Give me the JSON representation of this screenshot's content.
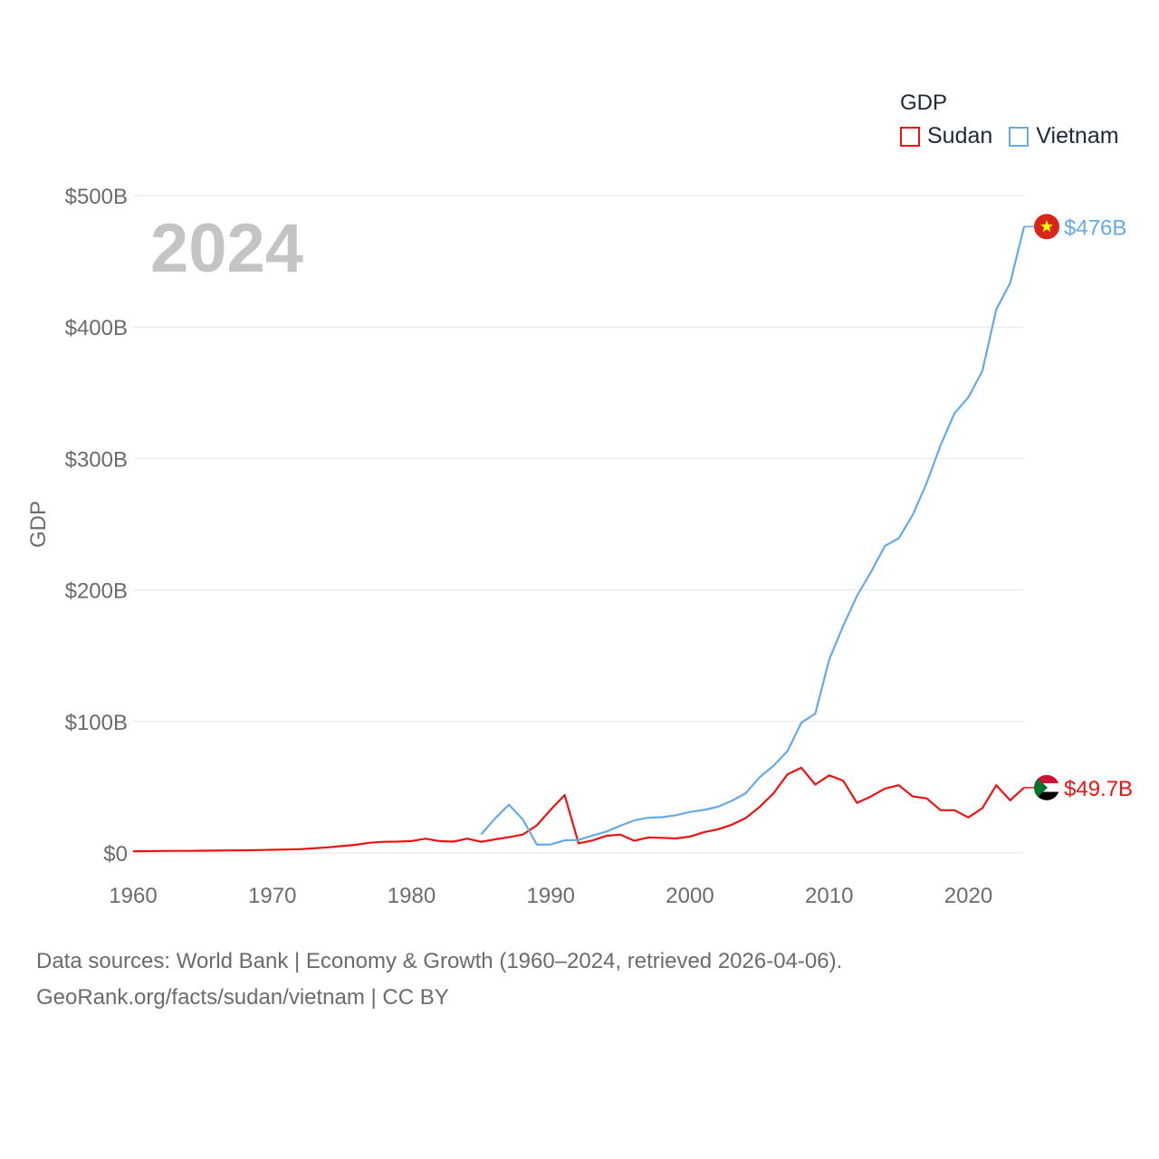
{
  "legend": {
    "title": "GDP",
    "items": [
      {
        "label": "Sudan",
        "color": "#ee1111"
      },
      {
        "label": "Vietnam",
        "color": "#66aae6"
      }
    ]
  },
  "footer": {
    "line1": "Data sources: World Bank | Economy & Growth (1960–2024, retrieved 2026-04-06).",
    "line2": "GeoRank.org/facts/sudan/vietnam | CC BY"
  },
  "chart_data": {
    "type": "line",
    "title": "GDP",
    "year_label": "2024",
    "ylabel": "GDP",
    "xlabel": "",
    "xlim": [
      1960,
      2024
    ],
    "ylim": [
      0,
      500
    ],
    "x_ticks": [
      1960,
      1970,
      1980,
      1990,
      2000,
      2010,
      2020
    ],
    "y_ticks": [
      0,
      100,
      200,
      300,
      400,
      500
    ],
    "y_tick_labels": [
      "$0",
      "$100B",
      "$200B",
      "$300B",
      "$400B",
      "$500B"
    ],
    "grid": true,
    "series": [
      {
        "name": "Sudan",
        "color": "#ee1111",
        "end_label": "$49.7B",
        "flag": "sudan-flag",
        "points": [
          [
            1960,
            1.3
          ],
          [
            1961,
            1.4
          ],
          [
            1962,
            1.5
          ],
          [
            1963,
            1.6
          ],
          [
            1964,
            1.6
          ],
          [
            1965,
            1.7
          ],
          [
            1966,
            1.8
          ],
          [
            1967,
            1.9
          ],
          [
            1968,
            2.0
          ],
          [
            1969,
            2.2
          ],
          [
            1970,
            2.4
          ],
          [
            1971,
            2.6
          ],
          [
            1972,
            2.9
          ],
          [
            1973,
            3.5
          ],
          [
            1974,
            4.3
          ],
          [
            1975,
            5.2
          ],
          [
            1976,
            6.2
          ],
          [
            1977,
            7.8
          ],
          [
            1978,
            8.5
          ],
          [
            1979,
            8.6
          ],
          [
            1980,
            9.0
          ],
          [
            1981,
            10.9
          ],
          [
            1982,
            9.0
          ],
          [
            1983,
            8.6
          ],
          [
            1984,
            10.9
          ],
          [
            1985,
            8.5
          ],
          [
            1986,
            10.3
          ],
          [
            1987,
            12.0
          ],
          [
            1988,
            14.0
          ],
          [
            1989,
            21.0
          ],
          [
            1990,
            33.0
          ],
          [
            1991,
            44.0
          ],
          [
            1992,
            7.3
          ],
          [
            1993,
            9.5
          ],
          [
            1994,
            13.0
          ],
          [
            1995,
            14.0
          ],
          [
            1996,
            9.3
          ],
          [
            1997,
            11.8
          ],
          [
            1998,
            11.5
          ],
          [
            1999,
            11.0
          ],
          [
            2000,
            12.5
          ],
          [
            2001,
            15.8
          ],
          [
            2002,
            18.0
          ],
          [
            2003,
            21.4
          ],
          [
            2004,
            26.5
          ],
          [
            2005,
            35.0
          ],
          [
            2006,
            45.4
          ],
          [
            2007,
            59.7
          ],
          [
            2008,
            64.8
          ],
          [
            2009,
            52.0
          ],
          [
            2010,
            59.0
          ],
          [
            2011,
            55.0
          ],
          [
            2012,
            38.0
          ],
          [
            2013,
            43.0
          ],
          [
            2014,
            49.0
          ],
          [
            2015,
            51.5
          ],
          [
            2016,
            43.0
          ],
          [
            2017,
            41.5
          ],
          [
            2018,
            32.5
          ],
          [
            2019,
            32.5
          ],
          [
            2020,
            27.0
          ],
          [
            2021,
            34.0
          ],
          [
            2022,
            51.5
          ],
          [
            2023,
            40.0
          ],
          [
            2024,
            49.7
          ]
        ]
      },
      {
        "name": "Vietnam",
        "color": "#66aae6",
        "end_label": "$476B",
        "flag": "vietnam-flag",
        "points": [
          [
            1985,
            14.1
          ],
          [
            1986,
            26.3
          ],
          [
            1987,
            36.7
          ],
          [
            1988,
            25.4
          ],
          [
            1989,
            6.3
          ],
          [
            1990,
            6.5
          ],
          [
            1991,
            9.6
          ],
          [
            1992,
            9.9
          ],
          [
            1993,
            13.2
          ],
          [
            1994,
            16.3
          ],
          [
            1995,
            20.7
          ],
          [
            1996,
            24.7
          ],
          [
            1997,
            26.8
          ],
          [
            1998,
            27.2
          ],
          [
            1999,
            28.7
          ],
          [
            2000,
            31.2
          ],
          [
            2001,
            32.7
          ],
          [
            2002,
            35.1
          ],
          [
            2003,
            39.6
          ],
          [
            2004,
            45.4
          ],
          [
            2005,
            57.6
          ],
          [
            2006,
            66.4
          ],
          [
            2007,
            77.4
          ],
          [
            2008,
            99.1
          ],
          [
            2009,
            106.0
          ],
          [
            2010,
            147.2
          ],
          [
            2011,
            172.6
          ],
          [
            2012,
            195.6
          ],
          [
            2013,
            213.7
          ],
          [
            2014,
            233.5
          ],
          [
            2015,
            239.3
          ],
          [
            2016,
            257.1
          ],
          [
            2017,
            281.4
          ],
          [
            2018,
            310.1
          ],
          [
            2019,
            334.4
          ],
          [
            2020,
            346.6
          ],
          [
            2021,
            366.5
          ],
          [
            2022,
            413.4
          ],
          [
            2023,
            433.4
          ],
          [
            2024,
            476.4
          ]
        ]
      }
    ]
  }
}
